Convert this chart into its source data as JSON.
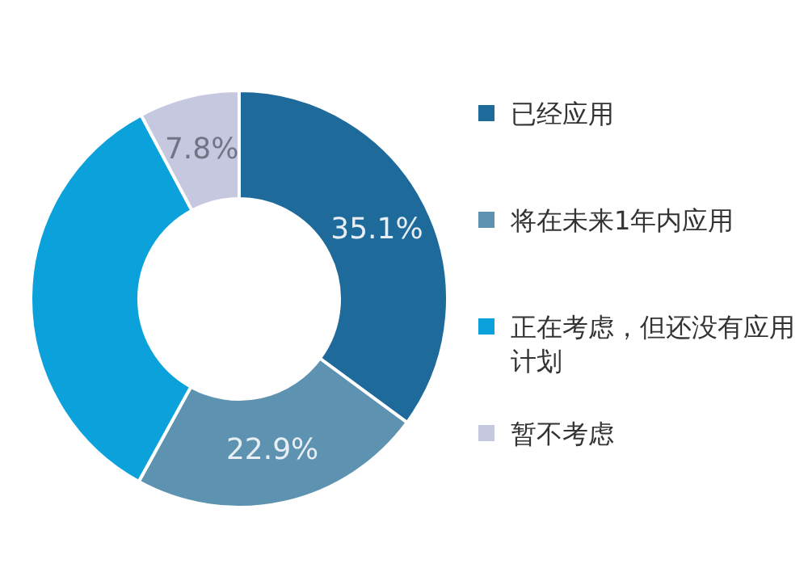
{
  "chart_data": {
    "type": "donut",
    "categories": [
      "已经应用",
      "将在未来1年内应用",
      "正在考虑，但还没有应用计划",
      "暂不考虑"
    ],
    "values": [
      35.1,
      22.9,
      34.2,
      7.8
    ],
    "colors": [
      "#1e6a9a",
      "#5d93b0",
      "#0ba2db",
      "#c6c8e0"
    ],
    "value_labels": [
      "35.1%",
      "22.9%",
      null,
      "7.8%"
    ],
    "legend": "right"
  }
}
